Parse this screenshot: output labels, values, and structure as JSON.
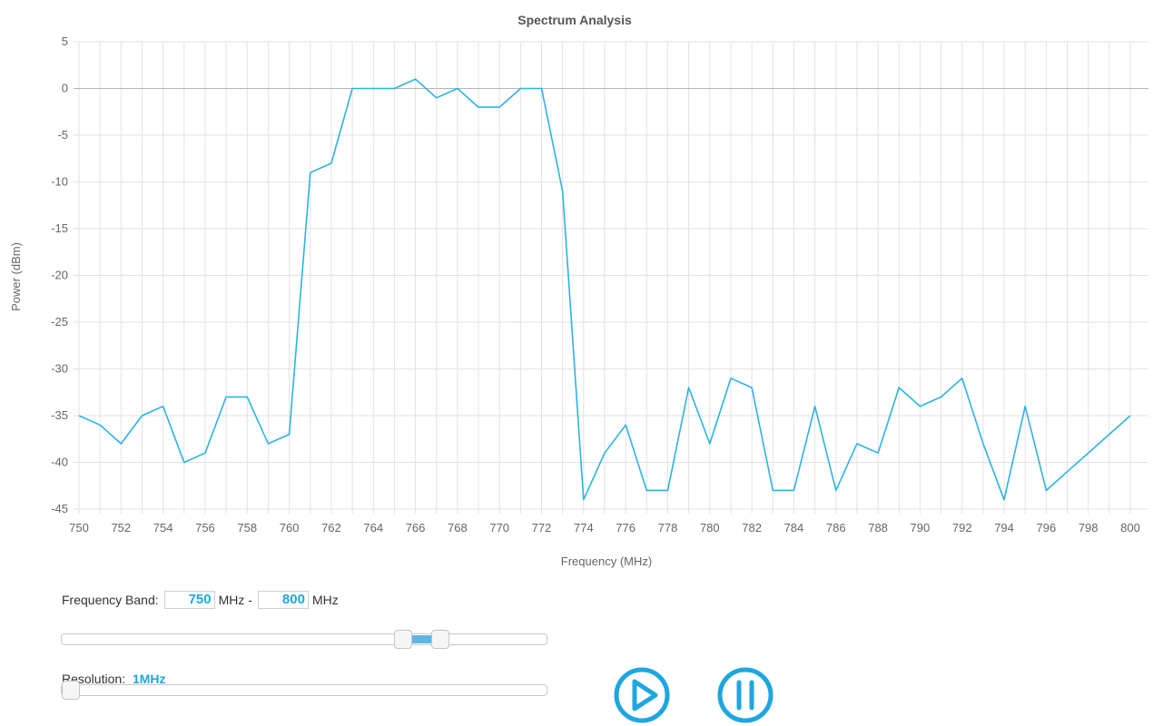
{
  "chart_data": {
    "type": "line",
    "title": "Spectrum Analysis",
    "xlabel": "Frequency (MHz)",
    "ylabel": "Power (dBm)",
    "xlim": [
      750,
      800
    ],
    "ylim": [
      -45,
      5
    ],
    "x_ticks": [
      750,
      752,
      754,
      756,
      758,
      760,
      762,
      764,
      766,
      768,
      770,
      772,
      774,
      776,
      778,
      780,
      782,
      784,
      786,
      788,
      790,
      792,
      794,
      796,
      798,
      800
    ],
    "y_ticks": [
      5,
      0,
      -5,
      -10,
      -15,
      -20,
      -25,
      -30,
      -35,
      -40,
      -45
    ],
    "grid": true,
    "legend": "none",
    "series": [
      {
        "x": [
          750,
          751,
          752,
          753,
          754,
          755,
          756,
          757,
          758,
          759,
          760,
          761,
          762,
          763,
          764,
          765,
          766,
          767,
          768,
          769,
          770,
          771,
          772,
          773,
          774,
          775,
          776,
          777,
          778,
          779,
          780,
          781,
          782,
          783,
          784,
          785,
          786,
          787,
          788,
          789,
          790,
          791,
          792,
          793,
          794,
          795,
          796,
          797,
          798,
          799,
          800
        ],
        "values": [
          -35,
          -36,
          -38,
          -35,
          -34,
          -40,
          -39,
          -33,
          -33,
          -38,
          -37,
          -9,
          -8,
          0,
          0,
          0,
          1,
          -1,
          0,
          -2,
          -2,
          0,
          0,
          -11,
          -44,
          -39,
          -36,
          -43,
          -43,
          -32,
          -38,
          -31,
          -32,
          -43,
          -43,
          -34,
          -43,
          -38,
          -39,
          -32,
          -34,
          -33,
          -31,
          -38,
          -44,
          -34,
          -43,
          -41,
          -39,
          -37,
          -35
        ]
      }
    ],
    "colors": {
      "line": "#2bb3e6",
      "zero_line": "#b5b5b5",
      "grid": "#e2e2e2"
    }
  },
  "controls": {
    "band_label": "Frequency Band:",
    "band_start": "750",
    "band_start_unit": "MHz -",
    "band_end": "800",
    "band_end_unit": "MHz",
    "band_slider_low": 0.705,
    "band_slider_high": 0.78,
    "resolution_label": "Resolution:",
    "resolution_value": "1MHz",
    "resolution_slider_value": 0.0,
    "accent_color": "#1fa6df"
  },
  "icons": {
    "play": "play-circle-icon",
    "pause": "pause-circle-icon"
  }
}
